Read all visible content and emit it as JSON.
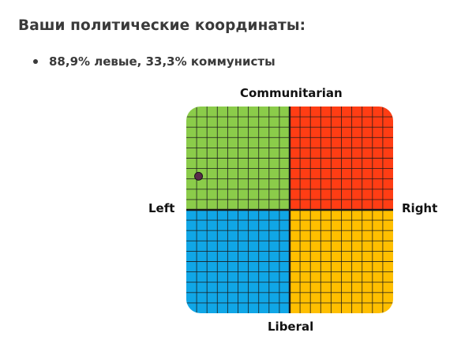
{
  "header": {
    "title": "Ваши политические координаты:"
  },
  "results": {
    "items": [
      {
        "label": "88,9% левые, 33,3% коммунисты"
      }
    ]
  },
  "compass": {
    "labels": {
      "top": "Communitarian",
      "bottom": "Liberal",
      "left": "Left",
      "right": "Right"
    },
    "quadrant_colors": {
      "top_left": "#8bcc4a",
      "top_right": "#ff3d14",
      "bottom_left": "#10a6e6",
      "bottom_right": "#ffbf00"
    },
    "grid_divisions_per_quadrant": 10,
    "point": {
      "economic": -0.889,
      "social": 0.333,
      "color": "#5a2a4a"
    }
  }
}
